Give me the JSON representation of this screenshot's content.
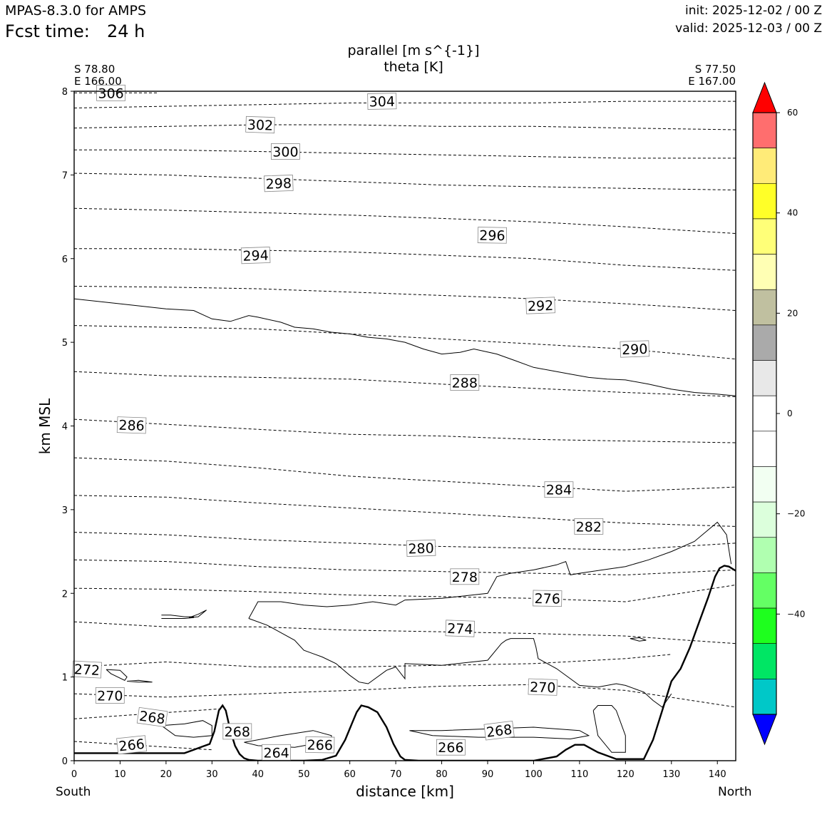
{
  "header": {
    "model": "MPAS-8.3.0 for AMPS",
    "fcst_label": "Fcst time:",
    "fcst_value": "24 h",
    "init": "init: 2025-12-02 / 00 Z",
    "valid": "valid: 2025-12-03 / 00 Z"
  },
  "titles": {
    "line1": "parallel [m s^{-1}]",
    "line2": "theta [K]"
  },
  "endpoints": {
    "left_lat": "S 78.80",
    "left_lon": "E 166.00",
    "right_lat": "S 77.50",
    "right_lon": "E 167.00",
    "left_dir": "South",
    "right_dir": "North"
  },
  "chart_data": {
    "type": "cross-section contour",
    "xlabel": "distance [km]",
    "ylabel": "km MSL",
    "xlim": [
      0,
      144
    ],
    "ylim": [
      0,
      8
    ],
    "xticks": [
      0,
      10,
      20,
      30,
      40,
      50,
      60,
      70,
      80,
      90,
      100,
      110,
      120,
      130,
      140
    ],
    "yticks": [
      0,
      1,
      2,
      3,
      4,
      5,
      6,
      7,
      8
    ],
    "terrain": {
      "name": "terrain",
      "x": [
        0,
        24,
        26,
        28,
        29.5,
        30.5,
        31.5,
        32.3,
        33,
        34,
        35,
        36,
        37,
        38,
        40,
        45,
        50,
        54,
        57,
        59,
        60.5,
        61.5,
        62.5,
        64,
        66,
        68,
        69.5,
        71,
        72,
        75,
        80,
        90,
        100,
        105,
        107,
        109,
        111,
        114,
        118,
        124,
        126,
        128,
        130,
        132,
        134,
        136,
        138,
        139.5,
        140.5,
        141.5,
        142.5,
        144
      ],
      "y": [
        0.09,
        0.09,
        0.13,
        0.17,
        0.2,
        0.35,
        0.6,
        0.66,
        0.6,
        0.36,
        0.18,
        0.08,
        0.03,
        0.01,
        0,
        0,
        0,
        0.01,
        0.06,
        0.25,
        0.45,
        0.58,
        0.66,
        0.64,
        0.58,
        0.4,
        0.2,
        0.05,
        0.01,
        0,
        0,
        0,
        0,
        0.05,
        0.13,
        0.19,
        0.19,
        0.1,
        0.02,
        0.02,
        0.25,
        0.6,
        0.95,
        1.1,
        1.35,
        1.65,
        1.95,
        2.2,
        2.3,
        2.33,
        2.32,
        2.27
      ]
    },
    "theta_contours": [
      {
        "value": 266,
        "x": [
          0,
          30
        ],
        "y": [
          0.23,
          0.13
        ]
      },
      {
        "value": 268,
        "x": [
          0,
          32
        ],
        "y": [
          0.5,
          0.62
        ]
      },
      {
        "value": 270,
        "x": [
          0,
          20,
          40,
          60,
          80,
          100,
          120,
          144
        ],
        "y": [
          0.8,
          0.76,
          0.8,
          0.84,
          0.89,
          0.91,
          0.84,
          0.64
        ]
      },
      {
        "value": 272,
        "x": [
          0,
          20,
          40,
          60,
          80,
          100,
          120,
          130
        ],
        "y": [
          1.12,
          1.18,
          1.12,
          1.12,
          1.14,
          1.16,
          1.22,
          1.27
        ]
      },
      {
        "value": 274,
        "x": [
          0,
          20,
          40,
          60,
          80,
          100,
          120,
          144
        ],
        "y": [
          1.66,
          1.6,
          1.6,
          1.56,
          1.54,
          1.52,
          1.49,
          1.4
        ]
      },
      {
        "value": 276,
        "x": [
          0,
          20,
          40,
          60,
          80,
          100,
          120,
          144
        ],
        "y": [
          2.06,
          2.05,
          2.02,
          1.98,
          1.96,
          1.94,
          1.9,
          2.1
        ]
      },
      {
        "value": 278,
        "x": [
          0,
          20,
          40,
          60,
          80,
          100,
          120,
          144
        ],
        "y": [
          2.4,
          2.38,
          2.32,
          2.28,
          2.26,
          2.24,
          2.22,
          2.28
        ]
      },
      {
        "value": 280,
        "x": [
          0,
          20,
          40,
          60,
          80,
          100,
          120,
          144
        ],
        "y": [
          2.73,
          2.7,
          2.64,
          2.6,
          2.56,
          2.54,
          2.52,
          2.6
        ]
      },
      {
        "value": 282,
        "x": [
          0,
          20,
          40,
          60,
          80,
          100,
          120,
          144
        ],
        "y": [
          3.17,
          3.15,
          3.08,
          3.02,
          2.96,
          2.9,
          2.84,
          2.8
        ]
      },
      {
        "value": 284,
        "x": [
          0,
          20,
          40,
          60,
          80,
          100,
          120,
          144
        ],
        "y": [
          3.62,
          3.58,
          3.5,
          3.4,
          3.34,
          3.28,
          3.22,
          3.27
        ]
      },
      {
        "value": 286,
        "x": [
          0,
          20,
          40,
          60,
          80,
          100,
          120,
          144
        ],
        "y": [
          4.08,
          4.02,
          3.96,
          3.9,
          3.88,
          3.84,
          3.82,
          3.8
        ]
      },
      {
        "value": 288,
        "x": [
          0,
          20,
          40,
          60,
          80,
          100,
          120,
          144
        ],
        "y": [
          4.65,
          4.6,
          4.58,
          4.56,
          4.5,
          4.45,
          4.4,
          4.35
        ]
      },
      {
        "value": 290,
        "x": [
          0,
          20,
          40,
          60,
          80,
          100,
          120,
          144
        ],
        "y": [
          5.2,
          5.18,
          5.16,
          5.1,
          5.04,
          4.98,
          4.92,
          4.8
        ]
      },
      {
        "value": 292,
        "x": [
          0,
          20,
          40,
          60,
          80,
          100,
          120,
          144
        ],
        "y": [
          5.67,
          5.66,
          5.64,
          5.6,
          5.56,
          5.52,
          5.46,
          5.38
        ]
      },
      {
        "value": 294,
        "x": [
          0,
          20,
          40,
          60,
          80,
          100,
          120,
          144
        ],
        "y": [
          6.12,
          6.12,
          6.1,
          6.08,
          6.04,
          6.0,
          5.92,
          5.86
        ]
      },
      {
        "value": 296,
        "x": [
          0,
          20,
          40,
          60,
          80,
          100,
          120,
          144
        ],
        "y": [
          6.6,
          6.58,
          6.55,
          6.52,
          6.48,
          6.44,
          6.38,
          6.3
        ]
      },
      {
        "value": 298,
        "x": [
          0,
          20,
          40,
          60,
          80,
          100,
          120,
          144
        ],
        "y": [
          7.02,
          7.0,
          6.96,
          6.92,
          6.88,
          6.86,
          6.84,
          6.82
        ]
      },
      {
        "value": 300,
        "x": [
          0,
          20,
          40,
          60,
          80,
          100,
          120,
          144
        ],
        "y": [
          7.3,
          7.3,
          7.28,
          7.26,
          7.24,
          7.22,
          7.2,
          7.2
        ]
      },
      {
        "value": 302,
        "x": [
          0,
          20,
          40,
          60,
          80,
          100,
          120,
          144
        ],
        "y": [
          7.56,
          7.58,
          7.6,
          7.6,
          7.58,
          7.58,
          7.56,
          7.54
        ]
      },
      {
        "value": 304,
        "x": [
          0,
          20,
          40,
          60,
          80,
          100,
          120,
          144
        ],
        "y": [
          7.8,
          7.82,
          7.84,
          7.86,
          7.86,
          7.86,
          7.88,
          7.88
        ]
      },
      {
        "value": 306,
        "x": [
          0,
          18
        ],
        "y": [
          7.98,
          7.98
        ]
      }
    ],
    "theta_labels": [
      {
        "text": "304",
        "x": 67,
        "y": 7.88,
        "angle": 1
      },
      {
        "text": "302",
        "x": 40.5,
        "y": 7.6,
        "angle": -2
      },
      {
        "text": "300",
        "x": 46,
        "y": 7.28,
        "angle": 0
      },
      {
        "text": "298",
        "x": 44.5,
        "y": 6.9,
        "angle": 2
      },
      {
        "text": "296",
        "x": 91,
        "y": 6.28,
        "angle": -1
      },
      {
        "text": "294",
        "x": 39.5,
        "y": 6.04,
        "angle": 2
      },
      {
        "text": "292",
        "x": 101.5,
        "y": 5.44,
        "angle": 2
      },
      {
        "text": "290",
        "x": 122,
        "y": 4.92,
        "angle": 2
      },
      {
        "text": "288",
        "x": 85,
        "y": 4.52,
        "angle": 0
      },
      {
        "text": "286",
        "x": 12.5,
        "y": 4.01,
        "angle": -2
      },
      {
        "text": "284",
        "x": 105.5,
        "y": 3.24,
        "angle": 0
      },
      {
        "text": "282",
        "x": 112,
        "y": 2.8,
        "angle": 0
      },
      {
        "text": "280",
        "x": 75.5,
        "y": 2.54,
        "angle": 2
      },
      {
        "text": "278",
        "x": 85,
        "y": 2.2,
        "angle": 0
      },
      {
        "text": "276",
        "x": 103,
        "y": 1.94,
        "angle": -1
      },
      {
        "text": "274",
        "x": 84,
        "y": 1.58,
        "angle": -2
      },
      {
        "text": "272",
        "x": 2.8,
        "y": 1.09,
        "angle": -3
      },
      {
        "text": "270",
        "x": 7.8,
        "y": 0.78,
        "angle": 0
      },
      {
        "text": "270",
        "x": 102,
        "y": 0.88,
        "angle": -2
      },
      {
        "text": "268",
        "x": 17,
        "y": 0.52,
        "angle": -8
      },
      {
        "text": "268",
        "x": 35.5,
        "y": 0.35,
        "angle": 0
      },
      {
        "text": "268",
        "x": 92.5,
        "y": 0.36,
        "angle": 7
      },
      {
        "text": "266",
        "x": 12.5,
        "y": 0.19,
        "angle": 6
      },
      {
        "text": "266",
        "x": 53.5,
        "y": 0.19,
        "angle": -1
      },
      {
        "text": "266",
        "x": 82,
        "y": 0.16,
        "angle": 0
      },
      {
        "text": "264",
        "x": 44,
        "y": 0.1,
        "angle": 0
      },
      {
        "text": "306",
        "x": 8,
        "y": 7.98,
        "angle": 0
      }
    ],
    "wind_contours": [
      {
        "value": 0,
        "x": [
          0,
          10,
          20,
          26,
          30,
          34,
          38,
          40,
          45,
          48,
          52,
          56,
          60,
          64,
          68,
          72,
          76,
          80,
          84,
          87,
          92,
          96,
          100,
          104,
          108,
          112,
          116,
          120,
          125,
          130,
          135,
          140,
          144
        ],
        "y": [
          5.52,
          5.46,
          5.4,
          5.38,
          5.28,
          5.25,
          5.32,
          5.3,
          5.24,
          5.18,
          5.16,
          5.12,
          5.1,
          5.06,
          5.04,
          5.0,
          4.92,
          4.86,
          4.88,
          4.92,
          4.86,
          4.78,
          4.7,
          4.66,
          4.62,
          4.58,
          4.56,
          4.55,
          4.5,
          4.44,
          4.4,
          4.38,
          4.36
        ]
      },
      {
        "value": 0,
        "x": [
          38,
          40,
          45,
          50,
          55,
          60,
          65,
          70,
          72,
          80,
          90,
          92,
          95,
          100,
          105,
          107,
          108,
          110,
          115,
          120,
          125,
          130,
          135,
          140,
          142,
          143
        ],
        "y": [
          1.7,
          1.9,
          1.9,
          1.86,
          1.84,
          1.86,
          1.9,
          1.86,
          1.92,
          1.94,
          2.0,
          2.2,
          2.24,
          2.28,
          2.34,
          2.38,
          2.22,
          2.24,
          2.28,
          2.32,
          2.4,
          2.5,
          2.62,
          2.85,
          2.7,
          2.35
        ]
      },
      {
        "value": 0,
        "x": [
          38,
          42,
          48,
          50,
          52,
          54,
          57,
          60,
          62,
          64,
          68,
          70,
          72,
          72,
          80,
          90,
          93,
          94,
          95,
          100,
          100.5,
          101,
          105,
          110,
          114,
          118,
          120,
          124,
          126,
          128,
          130
        ],
        "y": [
          1.7,
          1.62,
          1.44,
          1.32,
          1.28,
          1.24,
          1.16,
          1.02,
          0.94,
          0.92,
          1.08,
          1.12,
          0.98,
          1.16,
          1.14,
          1.2,
          1.4,
          1.44,
          1.46,
          1.46,
          1.36,
          1.22,
          1.1,
          0.9,
          0.88,
          0.92,
          0.9,
          0.82,
          0.72,
          0.64,
          0.8
        ]
      },
      {
        "value": 0,
        "x": [
          19,
          21,
          24,
          26,
          26,
          24,
          21,
          19
        ],
        "y": [
          1.74,
          1.74,
          1.72,
          1.72,
          1.71,
          1.7,
          1.7,
          1.7
        ]
      },
      {
        "value": 0,
        "x": [
          25,
          27,
          28.8,
          27,
          25
        ],
        "y": [
          1.71,
          1.75,
          1.8,
          1.72,
          1.71
        ]
      },
      {
        "value": 0,
        "x": [
          7,
          10,
          11.5,
          11,
          8,
          7
        ],
        "y": [
          1.09,
          1.08,
          1.0,
          0.96,
          1.04,
          1.09
        ]
      },
      {
        "value": 0,
        "x": [
          11.5,
          14,
          17,
          14,
          11.5
        ],
        "y": [
          0.95,
          0.96,
          0.94,
          0.94,
          0.95
        ]
      },
      {
        "value": 0,
        "x": [
          121,
          123,
          124.5,
          123,
          121
        ],
        "y": [
          1.46,
          1.47,
          1.44,
          1.43,
          1.46
        ]
      },
      {
        "value": 0,
        "x": [
          113,
          114,
          117,
          118,
          120,
          120,
          117,
          114,
          113
        ],
        "y": [
          0.6,
          0.66,
          0.66,
          0.6,
          0.3,
          0.1,
          0.1,
          0.3,
          0.6
        ]
      },
      {
        "value": 0,
        "x": [
          19,
          24,
          28,
          30,
          30,
          26,
          22,
          19
        ],
        "y": [
          0.42,
          0.44,
          0.48,
          0.42,
          0.3,
          0.28,
          0.3,
          0.42
        ]
      },
      {
        "value": 0,
        "x": [
          37,
          45,
          52,
          56,
          56,
          48,
          40,
          37
        ],
        "y": [
          0.22,
          0.3,
          0.36,
          0.3,
          0.24,
          0.16,
          0.18,
          0.22
        ]
      },
      {
        "value": 0,
        "x": [
          73,
          80,
          90,
          100,
          110,
          112,
          108,
          100,
          88,
          78,
          73
        ],
        "y": [
          0.36,
          0.36,
          0.38,
          0.4,
          0.36,
          0.3,
          0.26,
          0.28,
          0.28,
          0.3,
          0.36
        ]
      }
    ],
    "colorbar": {
      "ticks": [
        60,
        40,
        20,
        0,
        -20,
        -40
      ],
      "range": [
        -60,
        60
      ],
      "colors": [
        "#ff0000",
        "#ff6e6e",
        "#ffeb78",
        "#ffff28",
        "#ffff78",
        "#ffffb4",
        "#c0c0a0",
        "#aaaaaa",
        "#e8e8e8",
        "#ffffff",
        "#ffffff",
        "#f2fff2",
        "#dcffdc",
        "#b0ffb0",
        "#64ff64",
        "#1eff1e",
        "#00e664",
        "#00c8c8",
        "#0000ff"
      ]
    }
  }
}
